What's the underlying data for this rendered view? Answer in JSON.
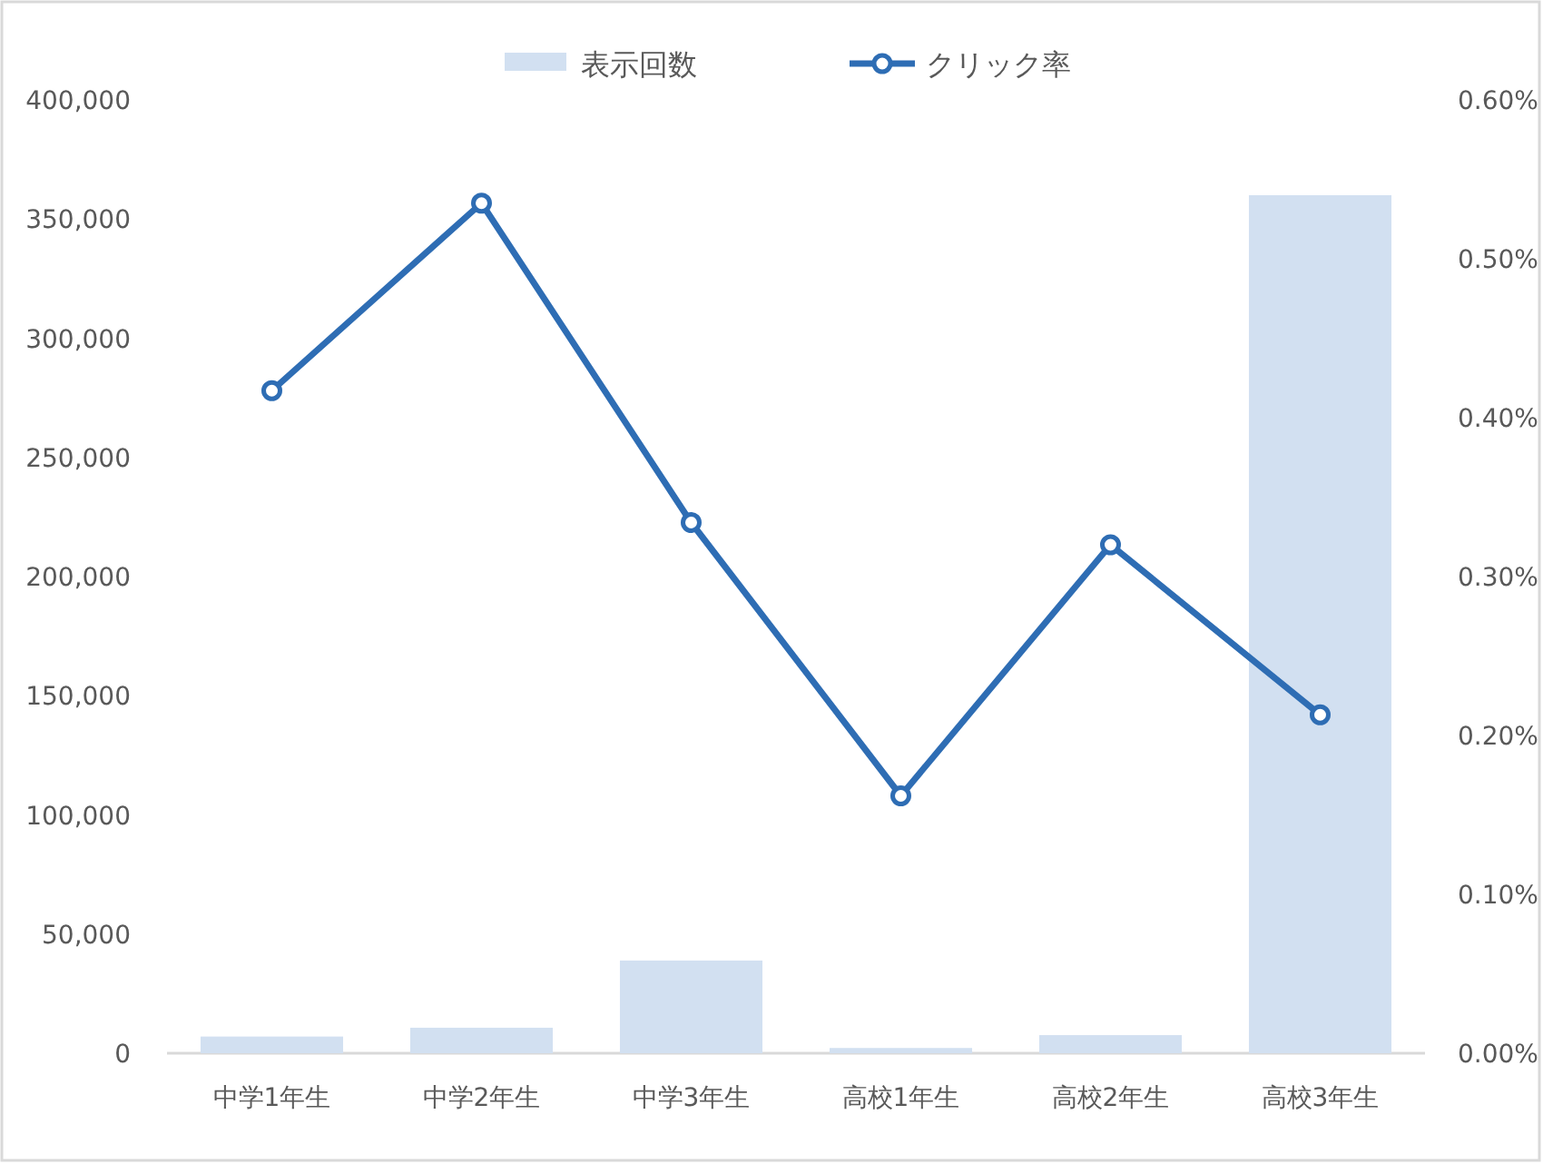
{
  "chart_data": {
    "type": "bar",
    "categories": [
      "中学1年生",
      "中学2年生",
      "中学3年生",
      "高校1年生",
      "高校2年生",
      "高校3年生"
    ],
    "series": [
      {
        "name": "表示回数",
        "color": "#d2e0f1",
        "values": [
          7000,
          10700,
          38900,
          2200,
          7600,
          360000
        ]
      },
      {
        "name": "クリック率",
        "type": "line",
        "axis": "y2",
        "color": "#2e6db4",
        "marker": "circle",
        "values": [
          0.417,
          0.535,
          0.334,
          0.162,
          0.32,
          0.213
        ]
      }
    ],
    "ylim": [
      0,
      400000
    ],
    "yticks": [
      {
        "value": 0,
        "label": "0"
      },
      {
        "value": 50000,
        "label": "50,000"
      },
      {
        "value": 100000,
        "label": "100,000"
      },
      {
        "value": 150000,
        "label": "150,000"
      },
      {
        "value": 200000,
        "label": "200,000"
      },
      {
        "value": 250000,
        "label": "250,000"
      },
      {
        "value": 300000,
        "label": "300,000"
      },
      {
        "value": 350000,
        "label": "350,000"
      },
      {
        "value": 400000,
        "label": "400,000"
      }
    ],
    "y2lim": [
      0,
      0.6
    ],
    "y2ticks": [
      {
        "value": 0,
        "label": "0.00%"
      },
      {
        "value": 0.1,
        "label": "0.10%"
      },
      {
        "value": 0.2,
        "label": "0.20%"
      },
      {
        "value": 0.3,
        "label": "0.30%"
      },
      {
        "value": 0.4,
        "label": "0.40%"
      },
      {
        "value": 0.5,
        "label": "0.50%"
      },
      {
        "value": 0.6,
        "label": "0.60%"
      }
    ],
    "grid": false,
    "legend": "top"
  }
}
